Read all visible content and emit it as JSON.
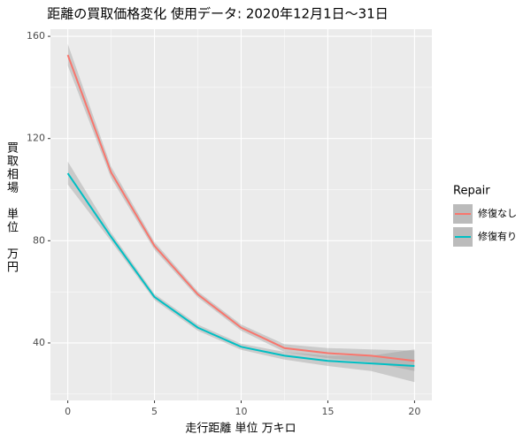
{
  "chart_data": {
    "type": "line",
    "title": "距離の買取価格変化 使用データ: 2020年12月1日～31日",
    "xlabel": "走行距離 単位 万キロ",
    "ylabel": "買取相場　単位　万円",
    "legend_title": "Repair",
    "legend_position": "right",
    "grid": true,
    "x": [
      0,
      2.5,
      5,
      7.5,
      10,
      12.5,
      15,
      17.5,
      20
    ],
    "series": [
      {
        "name": "修復なし",
        "color": "#F8766D",
        "values": [
          152.7,
          106.7,
          78,
          59,
          46,
          38,
          36,
          35,
          33
        ],
        "lower": [
          148.5,
          104.5,
          76.5,
          57.8,
          44.8,
          36.5,
          34,
          32.5,
          29
        ],
        "upper": [
          157,
          109,
          79.5,
          60.2,
          47.2,
          39.5,
          38,
          37.5,
          37
        ]
      },
      {
        "name": "修復有り",
        "color": "#00BFC4",
        "values": [
          106.4,
          81.5,
          58,
          46,
          38.5,
          35,
          33,
          32,
          31
        ],
        "lower": [
          102,
          79.8,
          56.8,
          44.8,
          37.3,
          33.5,
          31,
          29,
          24.7
        ],
        "upper": [
          111,
          83.2,
          59.2,
          47.2,
          39.7,
          36.5,
          35,
          35,
          37.5
        ]
      }
    ],
    "xlim": [
      -1,
      21
    ],
    "xticks": [
      0,
      5,
      10,
      15,
      20
    ],
    "ylim": [
      17.5,
      162.8
    ],
    "yticks": [
      40,
      80,
      120,
      160
    ]
  }
}
